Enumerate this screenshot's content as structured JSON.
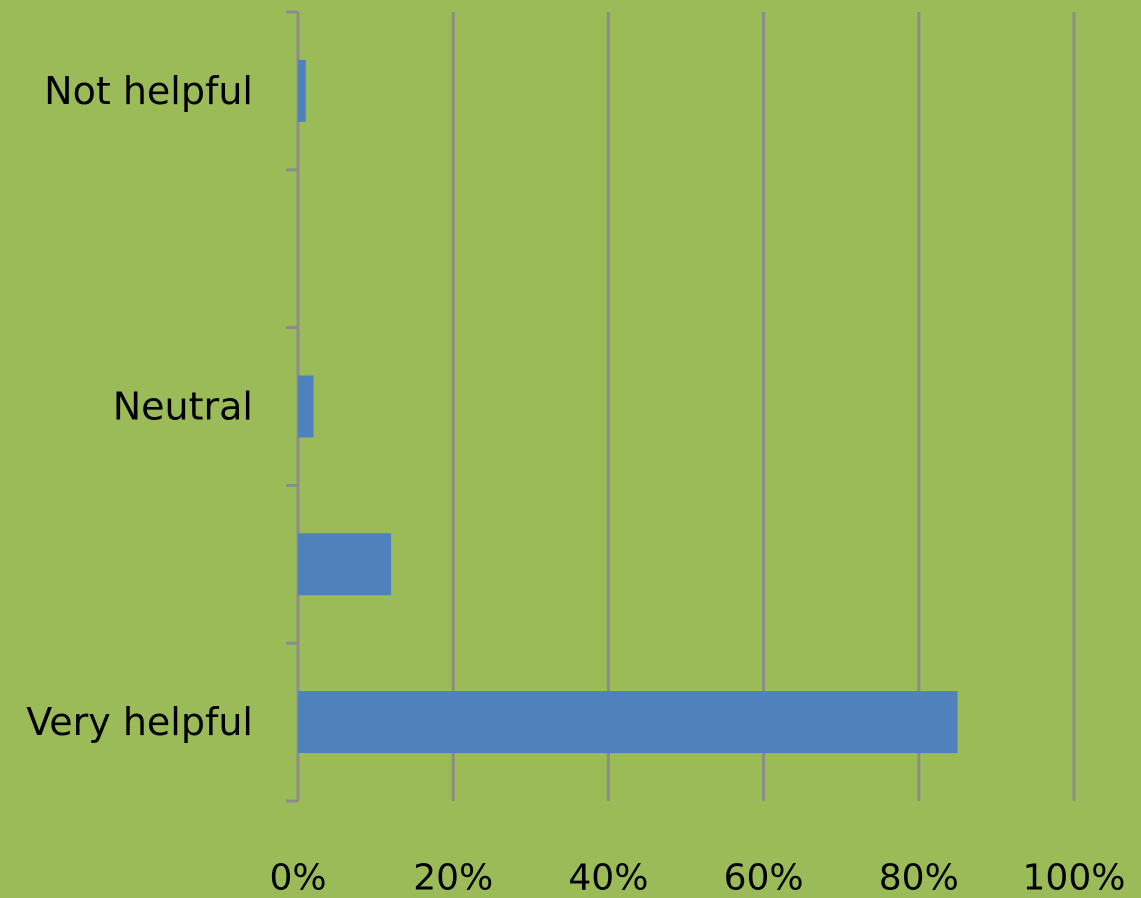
{
  "chart_data": {
    "type": "bar",
    "orientation": "horizontal",
    "categories": [
      "Very helpful",
      "",
      "Neutral",
      "",
      "Not helpful"
    ],
    "values": [
      85,
      12,
      2,
      0,
      1
    ],
    "xlim": [
      0,
      100
    ],
    "x_ticks": [
      "0%",
      "20%",
      "40%",
      "60%",
      "80%",
      "100%"
    ],
    "x_tick_values": [
      0,
      20,
      40,
      60,
      80,
      100
    ],
    "grid": "vertical",
    "legend": "none",
    "title": "",
    "xlabel": "",
    "ylabel": ""
  },
  "colors": {
    "background": "#9bbb59",
    "bar": "#4f81bd",
    "gridline": "#8c8c8c",
    "text": "#000000"
  }
}
